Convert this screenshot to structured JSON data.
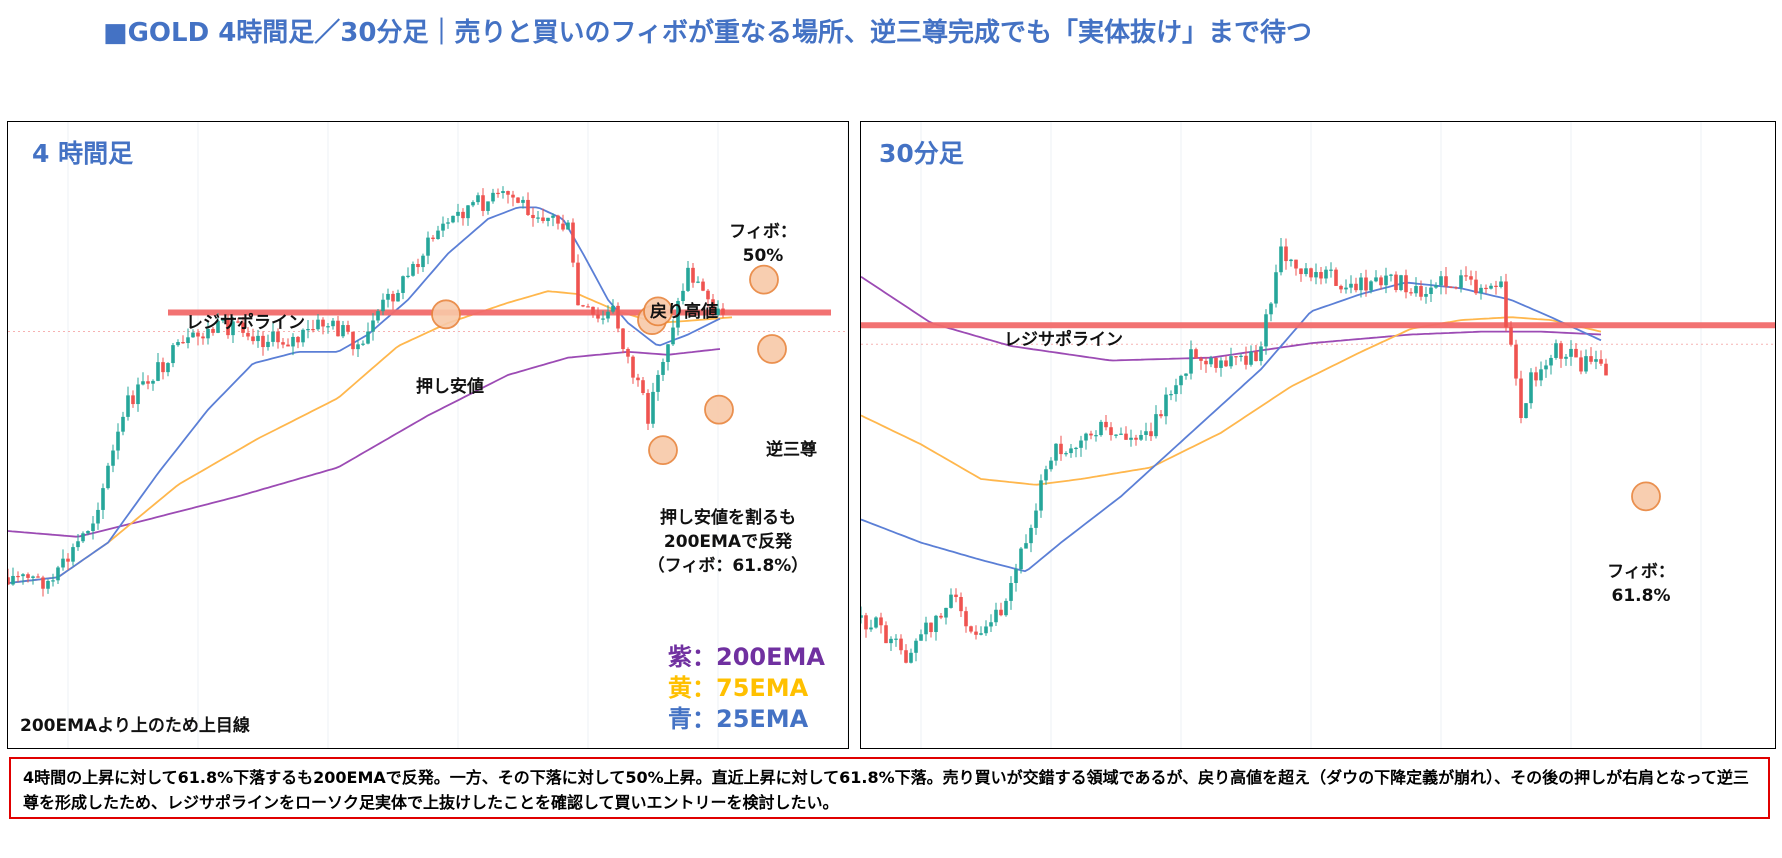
{
  "title": "■GOLD 4時間足／30分足｜売りと買いのフィボが重なる場所、逆三尊完成でも「実体抜け」まで待つ",
  "panels": {
    "h4": {
      "title": "4 時間足",
      "annotations": {
        "resistance_support": "レジサポライン",
        "pullback_low": "押し安値",
        "return_high": "戻り高値",
        "fibo50_line1": "フィボ：",
        "fibo50_line2": "50%",
        "inverse_hs": "逆三尊",
        "break_line1": "押し安値を割るも",
        "break_line2": "200EMAで反発",
        "break_line3": "（フィボ：61.8%）",
        "trend_note": "200EMAより上のため上目線"
      },
      "legend": [
        {
          "label": "紫：200EMA",
          "color": "#7030A0"
        },
        {
          "label": "黄：75EMA",
          "color": "#FFC000"
        },
        {
          "label": "青：25EMA",
          "color": "#4472C4"
        }
      ]
    },
    "m30": {
      "title": "30分足",
      "annotations": {
        "resistance_support": "レジサポライン",
        "fibo_line1": "フィボ：",
        "fibo_line2": "61.8%"
      }
    }
  },
  "note": "4時間の上昇に対して61.8%下落するも200EMAで反発。一方、その下落に対して50%上昇。直近上昇に対して61.8%下落。売り買いが交錯する領域であるが、戻り高値を超え（ダウの下降定義が崩れ）、その後の押しが右肩となって逆三尊を形成したため、レジサポラインをローソク足実体で上抜けしたことを確認して買いエントリーを検討したい。",
  "colors": {
    "up_candle": "#26A69A",
    "down_candle": "#EF5350",
    "ema200": "#9C4BB4",
    "ema75": "#FFB74D",
    "ema25": "#5B7FD6",
    "resistance_line": "#F26B6B",
    "marker_fill": "#F8C9A8",
    "marker_stroke": "#E8843C",
    "title_blue": "#4472C4"
  },
  "chart_data": [
    {
      "type": "candlestick",
      "name": "GOLD 4時間足",
      "path_anchors": [
        [
          0,
          76
        ],
        [
          45,
          77
        ],
        [
          85,
          66
        ],
        [
          120,
          46
        ],
        [
          160,
          38
        ],
        [
          195,
          34
        ],
        [
          230,
          32
        ],
        [
          255,
          35
        ],
        [
          290,
          35
        ],
        [
          315,
          32
        ],
        [
          340,
          34
        ],
        [
          355,
          37
        ],
        [
          365,
          31
        ],
        [
          395,
          25
        ],
        [
          430,
          16
        ],
        [
          460,
          12
        ],
        [
          500,
          10
        ],
        [
          520,
          12
        ],
        [
          545,
          14
        ],
        [
          560,
          16
        ],
        [
          570,
          29
        ],
        [
          590,
          32
        ],
        [
          605,
          30
        ],
        [
          625,
          41
        ],
        [
          640,
          48
        ],
        [
          655,
          38
        ],
        [
          680,
          23
        ],
        [
          700,
          28
        ],
        [
          712,
          31
        ],
        [
          715,
          30
        ]
      ],
      "ema_anchors": {
        "ema200": [
          [
            0,
            68
          ],
          [
            70,
            69
          ],
          [
            140,
            66
          ],
          [
            230,
            62
          ],
          [
            330,
            57
          ],
          [
            420,
            48
          ],
          [
            500,
            41
          ],
          [
            560,
            38
          ],
          [
            620,
            37
          ],
          [
            660,
            37.5
          ],
          [
            712,
            36.5
          ]
        ],
        "ema75": [
          [
            0,
            77
          ],
          [
            50,
            76
          ],
          [
            100,
            70
          ],
          [
            170,
            60
          ],
          [
            250,
            52
          ],
          [
            330,
            45
          ],
          [
            390,
            36
          ],
          [
            440,
            32
          ],
          [
            500,
            28.5
          ],
          [
            540,
            26.5
          ],
          [
            570,
            27
          ],
          [
            610,
            30
          ],
          [
            650,
            32
          ],
          [
            690,
            31.5
          ],
          [
            725,
            31
          ]
        ],
        "ema25": [
          [
            0,
            77
          ],
          [
            50,
            76
          ],
          [
            100,
            70
          ],
          [
            150,
            58
          ],
          [
            200,
            47
          ],
          [
            245,
            39
          ],
          [
            290,
            37
          ],
          [
            330,
            37
          ],
          [
            360,
            34
          ],
          [
            400,
            28
          ],
          [
            440,
            20
          ],
          [
            480,
            14
          ],
          [
            510,
            12
          ],
          [
            530,
            12
          ],
          [
            555,
            14
          ],
          [
            575,
            20
          ],
          [
            600,
            28
          ],
          [
            620,
            32
          ],
          [
            650,
            36
          ],
          [
            680,
            34
          ],
          [
            715,
            31
          ]
        ]
      },
      "resistance_level": 30.2
    },
    {
      "type": "candlestick",
      "name": "GOLD 30分足",
      "path_anchors": [
        [
          0,
          83
        ],
        [
          20,
          85
        ],
        [
          45,
          90
        ],
        [
          70,
          84
        ],
        [
          90,
          80
        ],
        [
          115,
          85
        ],
        [
          140,
          81
        ],
        [
          160,
          72
        ],
        [
          180,
          60
        ],
        [
          195,
          54
        ],
        [
          220,
          52
        ],
        [
          240,
          50
        ],
        [
          265,
          52
        ],
        [
          290,
          50
        ],
        [
          310,
          44
        ],
        [
          330,
          38
        ],
        [
          355,
          40
        ],
        [
          380,
          38
        ],
        [
          395,
          38
        ],
        [
          405,
          32
        ],
        [
          420,
          20
        ],
        [
          435,
          22
        ],
        [
          460,
          23
        ],
        [
          485,
          26
        ],
        [
          510,
          25
        ],
        [
          535,
          25
        ],
        [
          560,
          26
        ],
        [
          590,
          25
        ],
        [
          620,
          26
        ],
        [
          640,
          26
        ],
        [
          660,
          48
        ],
        [
          670,
          42
        ],
        [
          690,
          37
        ],
        [
          705,
          37
        ],
        [
          720,
          39
        ],
        [
          735,
          38
        ],
        [
          745,
          40
        ]
      ],
      "ema_anchors": {
        "ema200": [
          [
            0,
            24
          ],
          [
            70,
            32
          ],
          [
            150,
            36
          ],
          [
            250,
            38.5
          ],
          [
            350,
            38
          ],
          [
            450,
            35.5
          ],
          [
            550,
            34
          ],
          [
            620,
            33.5
          ],
          [
            680,
            33.5
          ],
          [
            740,
            34
          ]
        ],
        "ema75": [
          [
            0,
            48
          ],
          [
            60,
            53
          ],
          [
            120,
            59
          ],
          [
            175,
            60
          ],
          [
            220,
            59
          ],
          [
            290,
            57
          ],
          [
            360,
            51
          ],
          [
            430,
            43
          ],
          [
            500,
            37
          ],
          [
            550,
            33
          ],
          [
            600,
            31.5
          ],
          [
            650,
            31
          ],
          [
            690,
            31.5
          ],
          [
            740,
            33.5
          ]
        ],
        "ema25": [
          [
            0,
            66
          ],
          [
            60,
            70
          ],
          [
            120,
            73
          ],
          [
            165,
            75
          ],
          [
            200,
            70
          ],
          [
            260,
            62
          ],
          [
            330,
            51
          ],
          [
            400,
            40
          ],
          [
            450,
            30
          ],
          [
            500,
            27
          ],
          [
            545,
            25
          ],
          [
            600,
            26
          ],
          [
            650,
            28
          ],
          [
            690,
            31
          ],
          [
            740,
            35
          ]
        ]
      },
      "resistance_level": 32.4
    }
  ]
}
